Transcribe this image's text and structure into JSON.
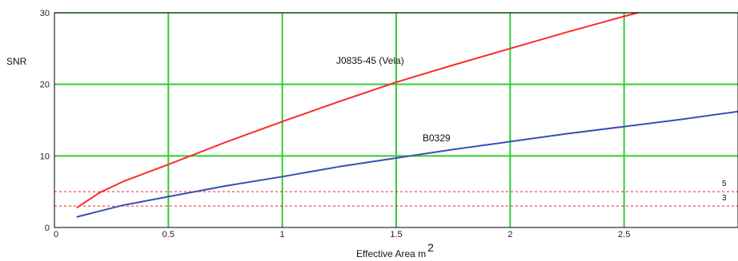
{
  "chart_data": {
    "type": "line",
    "ylabel": "SNR",
    "xlabel": "Effective  Area m",
    "xlabel_superscript": "2",
    "xlim": [
      0,
      3
    ],
    "ylim": [
      0,
      30
    ],
    "x_ticks": [
      "0",
      "0.5",
      "1",
      "1.5",
      "2",
      "2.5"
    ],
    "y_ticks": [
      "0",
      "10",
      "20",
      "30"
    ],
    "grid": true,
    "grid_color": "#33cc33",
    "series": [
      {
        "name": "J0835-45 (Vela)",
        "color": "#ff2a2a",
        "x": [
          0.1,
          0.2,
          0.3,
          0.5,
          0.75,
          1.0,
          1.25,
          1.5,
          1.75,
          2.0,
          2.25,
          2.5,
          2.56
        ],
        "y": [
          2.8,
          4.9,
          6.4,
          8.8,
          11.9,
          14.8,
          17.6,
          20.3,
          22.7,
          25.0,
          27.3,
          29.5,
          30.0
        ]
      },
      {
        "name": "B0329",
        "color": "#3b4db8",
        "x": [
          0.1,
          0.3,
          0.5,
          0.75,
          1.0,
          1.25,
          1.5,
          1.75,
          2.0,
          2.25,
          2.5,
          2.75,
          3.0
        ],
        "y": [
          1.5,
          3.1,
          4.3,
          5.8,
          7.1,
          8.5,
          9.7,
          10.9,
          12.0,
          13.1,
          14.1,
          15.1,
          16.2
        ]
      }
    ],
    "reference_lines": [
      {
        "value": 5,
        "label": "5",
        "color": "#ee2222"
      },
      {
        "value": 3,
        "label": "3",
        "color": "#ee2222"
      }
    ]
  }
}
